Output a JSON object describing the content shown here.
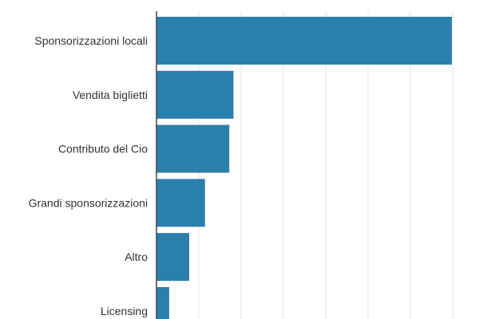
{
  "chart_data": {
    "type": "bar",
    "orientation": "horizontal",
    "categories": [
      "Sponsorizzazioni locali",
      "Vendita biglietti",
      "Contributo del Cio",
      "Grandi sponsorizzazioni",
      "Altro",
      "Licensing"
    ],
    "values": [
      1400,
      365,
      345,
      230,
      155,
      60
    ],
    "xlim": [
      0,
      1400
    ],
    "grid": true,
    "bar_color": "#2b7fac",
    "gridline_color": "#e0e0e0",
    "axis_color": "#444444",
    "text_color": "#333333"
  }
}
